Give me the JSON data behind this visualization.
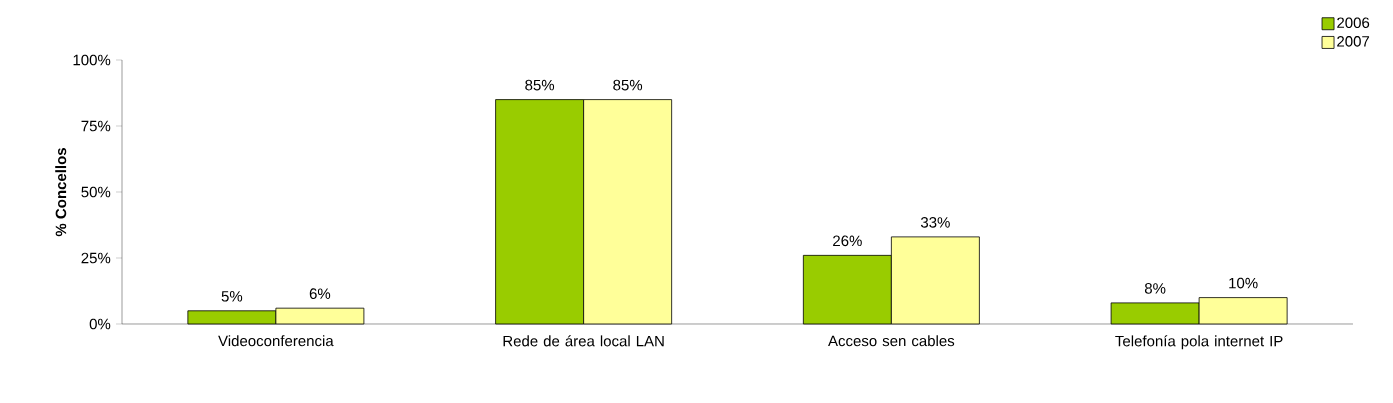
{
  "chart_data": {
    "type": "bar",
    "ylabel": "% Concellos",
    "categories": [
      "Videoconferencia",
      "Rede de área local LAN",
      "Acceso sen cables",
      "Telefonía pola internet IP"
    ],
    "series": [
      {
        "name": "2006",
        "color": "#99cc00",
        "values": [
          5,
          85,
          26,
          8
        ],
        "value_labels": [
          "5%",
          "85%",
          "26%",
          "8%"
        ]
      },
      {
        "name": "2007",
        "color": "#ffff99",
        "values": [
          6,
          85,
          33,
          10
        ],
        "value_labels": [
          "6%",
          "85%",
          "33%",
          "10%"
        ]
      }
    ],
    "ylim": [
      0,
      100
    ],
    "yticks": [
      {
        "value": 0,
        "label": "0%"
      },
      {
        "value": 25,
        "label": "25%"
      },
      {
        "value": 50,
        "label": "50%"
      },
      {
        "value": 75,
        "label": "75%"
      },
      {
        "value": 100,
        "label": "100%"
      }
    ],
    "grid": false,
    "legend": "top right"
  }
}
